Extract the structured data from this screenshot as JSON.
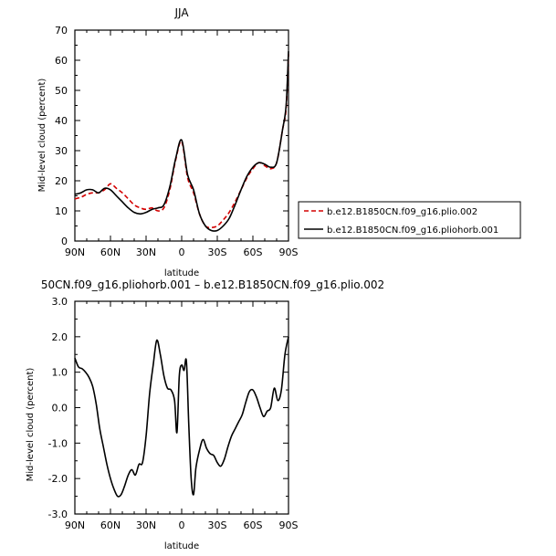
{
  "chart_data": [
    {
      "type": "line",
      "title": "JJA",
      "xlabel": "latitude",
      "ylabel": "Mid-level cloud (percent)",
      "xlim": [
        -90,
        90
      ],
      "ylim": [
        0,
        70
      ],
      "x_ticks": [
        {
          "value": -90,
          "label": "90N"
        },
        {
          "value": -60,
          "label": "60N"
        },
        {
          "value": -30,
          "label": "30N"
        },
        {
          "value": 0,
          "label": "0"
        },
        {
          "value": 30,
          "label": "30S"
        },
        {
          "value": 60,
          "label": "60S"
        },
        {
          "value": 90,
          "label": "90S"
        }
      ],
      "y_ticks": [
        0,
        10,
        20,
        30,
        40,
        50,
        60,
        70
      ],
      "legend_position": "right",
      "series": [
        {
          "name": "b.e12.B1850CN.f09_g16.plio.002",
          "color": "#d40000",
          "dash": "dashed",
          "x": [
            -90,
            -85,
            -80,
            -75,
            -70,
            -65,
            -60,
            -55,
            -50,
            -45,
            -40,
            -35,
            -30,
            -25,
            -20,
            -15,
            -10,
            -5,
            0,
            5,
            10,
            15,
            20,
            25,
            30,
            35,
            40,
            45,
            50,
            55,
            60,
            65,
            70,
            75,
            80,
            85,
            88,
            90
          ],
          "values": [
            14,
            14.5,
            15.5,
            16,
            16,
            17,
            19,
            17.5,
            16,
            14,
            12,
            11,
            10.5,
            11,
            10,
            11,
            17,
            27,
            33,
            21,
            16,
            9,
            5,
            4.5,
            5,
            7,
            9.5,
            13,
            17,
            21,
            24,
            26,
            25,
            24,
            26,
            37,
            44,
            62
          ]
        },
        {
          "name": "b.e12.B1850CN.f09_g16.pliohorb.001",
          "color": "#000000",
          "dash": "solid",
          "x": [
            -90,
            -85,
            -80,
            -75,
            -70,
            -65,
            -60,
            -55,
            -50,
            -45,
            -40,
            -35,
            -30,
            -25,
            -20,
            -15,
            -10,
            -5,
            0,
            5,
            10,
            15,
            20,
            25,
            30,
            35,
            40,
            45,
            50,
            55,
            60,
            65,
            70,
            75,
            80,
            85,
            88,
            90
          ],
          "values": [
            15.5,
            16,
            17,
            17,
            16,
            17.5,
            17,
            15,
            13,
            11,
            9.5,
            9,
            9.5,
            10.5,
            11,
            12,
            18,
            27.5,
            33.5,
            22,
            17,
            9,
            5,
            3.5,
            3.5,
            5,
            7.5,
            12,
            17,
            21.5,
            24.5,
            26,
            25.5,
            24.5,
            26,
            37,
            45,
            63
          ]
        }
      ]
    },
    {
      "type": "line",
      "title": "50CN.f09_g16.pliohorb.001 – b.e12.B1850CN.f09_g16.plio.002",
      "xlabel": "latitude",
      "ylabel": "Mid-level cloud (percent)",
      "xlim": [
        -90,
        90
      ],
      "ylim": [
        -3,
        3
      ],
      "x_ticks": [
        {
          "value": -90,
          "label": "90N"
        },
        {
          "value": -60,
          "label": "60N"
        },
        {
          "value": -30,
          "label": "30N"
        },
        {
          "value": 0,
          "label": "0"
        },
        {
          "value": 30,
          "label": "30S"
        },
        {
          "value": 60,
          "label": "60S"
        },
        {
          "value": 90,
          "label": "90S"
        }
      ],
      "y_ticks": [
        {
          "value": -3,
          "label": "-3.0"
        },
        {
          "value": -2,
          "label": "-2.0"
        },
        {
          "value": -1,
          "label": "-1.0"
        },
        {
          "value": 0,
          "label": "0.0"
        },
        {
          "value": 1,
          "label": "1.0"
        },
        {
          "value": 2,
          "label": "2.0"
        },
        {
          "value": 3,
          "label": "3.0"
        }
      ],
      "series": [
        {
          "color": "#000000",
          "dash": "solid",
          "x": [
            -90,
            -87,
            -84,
            -81,
            -78,
            -75,
            -72,
            -69,
            -66,
            -63,
            -60,
            -57,
            -54,
            -51,
            -48,
            -45,
            -42,
            -39,
            -36,
            -33,
            -30,
            -27,
            -24,
            -21,
            -18,
            -15,
            -12,
            -9,
            -6,
            -4,
            -2,
            0,
            2,
            4,
            6,
            8,
            10,
            12,
            15,
            18,
            21,
            24,
            27,
            30,
            33,
            36,
            39,
            42,
            45,
            48,
            51,
            54,
            57,
            60,
            63,
            66,
            69,
            72,
            75,
            78,
            81,
            84,
            87,
            90
          ],
          "values": [
            1.4,
            1.15,
            1.1,
            1.0,
            0.85,
            0.6,
            0.1,
            -0.6,
            -1.1,
            -1.6,
            -2.0,
            -2.3,
            -2.5,
            -2.45,
            -2.2,
            -1.9,
            -1.75,
            -1.9,
            -1.6,
            -1.55,
            -0.8,
            0.4,
            1.2,
            1.9,
            1.5,
            0.9,
            0.55,
            0.5,
            0.2,
            -0.7,
            0.9,
            1.2,
            1.05,
            1.3,
            -0.5,
            -2.0,
            -2.45,
            -1.7,
            -1.2,
            -0.9,
            -1.15,
            -1.3,
            -1.35,
            -1.55,
            -1.65,
            -1.45,
            -1.1,
            -0.8,
            -0.6,
            -0.4,
            -0.2,
            0.15,
            0.45,
            0.5,
            0.3,
            0.0,
            -0.25,
            -0.1,
            0.0,
            0.55,
            0.2,
            0.5,
            1.5,
            2.0
          ]
        }
      ]
    }
  ]
}
